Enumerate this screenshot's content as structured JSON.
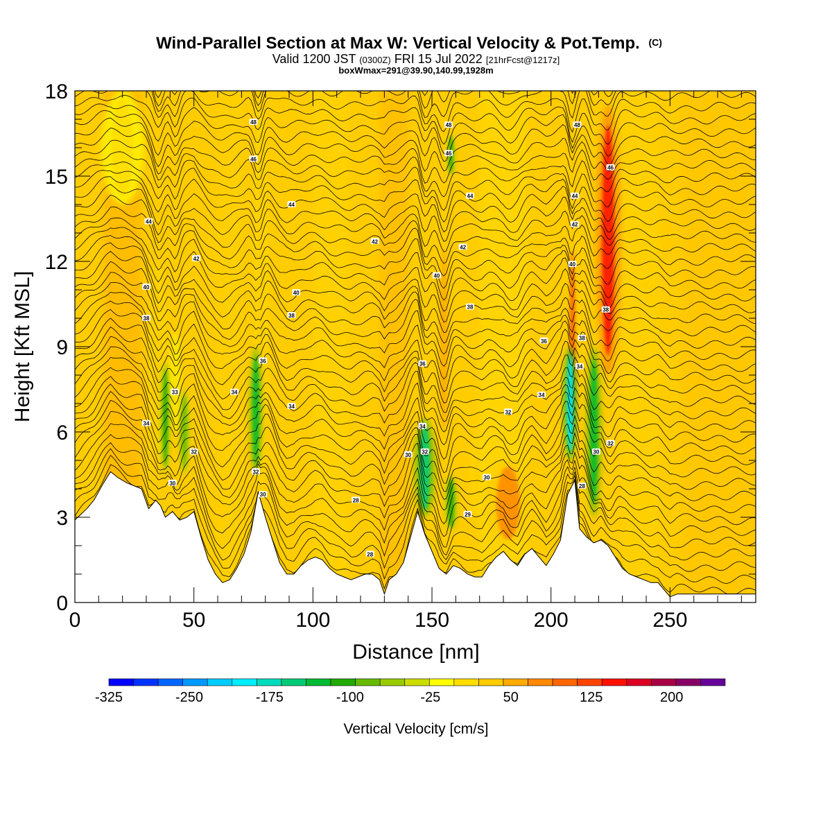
{
  "chart_data": {
    "type": "heatmap",
    "title": "Wind-Parallel Section at Max W: Vertical Velocity & Pot.Temp.",
    "title_units": "(C)",
    "subtitle_valid": "Valid 1200 JST",
    "subtitle_utc": "(0300Z)",
    "subtitle_date": "FRI 15 Jul 2022",
    "subtitle_fcst": "[21hrFcst@1217z]",
    "subtitle_box": "boxWmax=291@39.90,140.99,1928m",
    "xlabel": "Distance [nm]",
    "ylabel": "Height [Kft MSL]",
    "xlim": [
      0,
      286
    ],
    "ylim": [
      0,
      18
    ],
    "x_ticks": [
      0,
      50,
      100,
      150,
      200,
      250
    ],
    "y_ticks": [
      0,
      3,
      6,
      9,
      12,
      15,
      18
    ],
    "terrain": [
      [
        0,
        2.9
      ],
      [
        5,
        3.3
      ],
      [
        8,
        3.6
      ],
      [
        12,
        4.2
      ],
      [
        15,
        4.6
      ],
      [
        18,
        4.4
      ],
      [
        22,
        4.2
      ],
      [
        28,
        4.0
      ],
      [
        31,
        3.3
      ],
      [
        34,
        3.6
      ],
      [
        36,
        3.4
      ],
      [
        38,
        3.0
      ],
      [
        41,
        3.2
      ],
      [
        44,
        2.9
      ],
      [
        47,
        3.0
      ],
      [
        50,
        3.2
      ],
      [
        53,
        2.3
      ],
      [
        56,
        1.5
      ],
      [
        59,
        1.0
      ],
      [
        62,
        0.7
      ],
      [
        65,
        0.8
      ],
      [
        68,
        1.2
      ],
      [
        71,
        1.7
      ],
      [
        74,
        2.5
      ],
      [
        77,
        3.9
      ],
      [
        80,
        3.0
      ],
      [
        83,
        2.2
      ],
      [
        86,
        1.4
      ],
      [
        89,
        1.0
      ],
      [
        92,
        1.0
      ],
      [
        95,
        1.3
      ],
      [
        98,
        1.5
      ],
      [
        101,
        1.6
      ],
      [
        104,
        1.5
      ],
      [
        107,
        1.2
      ],
      [
        110,
        1.0
      ],
      [
        113,
        0.9
      ],
      [
        116,
        0.8
      ],
      [
        119,
        0.9
      ],
      [
        122,
        1.0
      ],
      [
        125,
        1.0
      ],
      [
        128,
        0.8
      ],
      [
        130,
        0.3
      ],
      [
        132,
        0.8
      ],
      [
        135,
        1.0
      ],
      [
        138,
        1.4
      ],
      [
        141,
        2.3
      ],
      [
        144,
        3.2
      ],
      [
        147,
        2.4
      ],
      [
        150,
        1.8
      ],
      [
        153,
        1.2
      ],
      [
        156,
        1.0
      ],
      [
        159,
        1.3
      ],
      [
        162,
        1.2
      ],
      [
        165,
        1.0
      ],
      [
        168,
        0.9
      ],
      [
        171,
        0.9
      ],
      [
        174,
        1.3
      ],
      [
        177,
        1.6
      ],
      [
        180,
        1.8
      ],
      [
        183,
        1.5
      ],
      [
        186,
        1.3
      ],
      [
        189,
        1.7
      ],
      [
        192,
        1.9
      ],
      [
        195,
        1.6
      ],
      [
        198,
        1.3
      ],
      [
        201,
        1.7
      ],
      [
        204,
        2.2
      ],
      [
        207,
        3.8
      ],
      [
        210,
        4.3
      ],
      [
        212,
        2.6
      ],
      [
        215,
        2.3
      ],
      [
        218,
        2.1
      ],
      [
        221,
        2.2
      ],
      [
        224,
        2.0
      ],
      [
        227,
        1.6
      ],
      [
        230,
        1.2
      ],
      [
        233,
        1.0
      ],
      [
        236,
        0.9
      ],
      [
        239,
        0.8
      ],
      [
        242,
        0.7
      ],
      [
        245,
        0.7
      ],
      [
        248,
        0.4
      ],
      [
        250,
        0.2
      ],
      [
        253,
        0.3
      ],
      [
        256,
        0.3
      ],
      [
        260,
        0.3
      ],
      [
        265,
        0.3
      ],
      [
        270,
        0.3
      ],
      [
        275,
        0.3
      ],
      [
        280,
        0.3
      ],
      [
        286,
        0.3
      ]
    ],
    "updrafts": [
      {
        "x": 35,
        "y0": 5,
        "y1": 12,
        "w": 1.5,
        "v": 60
      },
      {
        "x": 42,
        "y0": 6,
        "y1": 9.5,
        "w": 1.2,
        "v": 45
      },
      {
        "x": 78,
        "y0": 4,
        "y1": 17.5,
        "w": 1.4,
        "v": 55
      },
      {
        "x": 155,
        "y0": 5.5,
        "y1": 13,
        "w": 1.8,
        "v": 95
      },
      {
        "x": 169,
        "y0": 3,
        "y1": 6,
        "w": 1.2,
        "v": 60
      },
      {
        "x": 182,
        "y0": 2,
        "y1": 5,
        "w": 5.5,
        "v": 100
      },
      {
        "x": 209,
        "y0": 5,
        "y1": 13,
        "w": 1.5,
        "v": 130
      },
      {
        "x": 224,
        "y0": 8,
        "y1": 17.5,
        "w": 2.8,
        "v": 185
      },
      {
        "x": 20,
        "y0": 14,
        "y1": 18,
        "w": 5,
        "v": 40
      }
    ],
    "downdrafts": [
      {
        "x": 38,
        "y0": 4.5,
        "y1": 8.5,
        "w": 1.2,
        "v": -80
      },
      {
        "x": 46,
        "y0": 4.5,
        "y1": 7.5,
        "w": 1.2,
        "v": -70
      },
      {
        "x": 76,
        "y0": 4.5,
        "y1": 9,
        "w": 1.5,
        "v": -110
      },
      {
        "x": 147,
        "y0": 3,
        "y1": 6.5,
        "w": 2.5,
        "v": -130
      },
      {
        "x": 158,
        "y0": 2.5,
        "y1": 4.5,
        "w": 1.5,
        "v": -90
      },
      {
        "x": 158,
        "y0": 15,
        "y1": 16.5,
        "w": 1,
        "v": -90
      },
      {
        "x": 208,
        "y0": 5,
        "y1": 9,
        "w": 1.5,
        "v": -200
      },
      {
        "x": 218,
        "y0": 3,
        "y1": 9,
        "w": 1.8,
        "v": -110
      }
    ],
    "contour_labels": [
      {
        "x": 30,
        "y": 6.3,
        "t": "34"
      },
      {
        "x": 30,
        "y": 10.0,
        "t": "38"
      },
      {
        "x": 30,
        "y": 11.1,
        "t": "40"
      },
      {
        "x": 31,
        "y": 13.4,
        "t": "44"
      },
      {
        "x": 41,
        "y": 4.2,
        "t": "30"
      },
      {
        "x": 42,
        "y": 7.4,
        "t": "33"
      },
      {
        "x": 50,
        "y": 5.3,
        "t": "32"
      },
      {
        "x": 51,
        "y": 12.1,
        "t": "42"
      },
      {
        "x": 67,
        "y": 7.4,
        "t": "34"
      },
      {
        "x": 76,
        "y": 4.6,
        "t": "32"
      },
      {
        "x": 79,
        "y": 3.8,
        "t": "30"
      },
      {
        "x": 79,
        "y": 8.5,
        "t": "36"
      },
      {
        "x": 75,
        "y": 15.6,
        "t": "46"
      },
      {
        "x": 75,
        "y": 16.9,
        "t": "48"
      },
      {
        "x": 91,
        "y": 6.9,
        "t": "34"
      },
      {
        "x": 91,
        "y": 10.1,
        "t": "38"
      },
      {
        "x": 93,
        "y": 10.9,
        "t": "40"
      },
      {
        "x": 91,
        "y": 14.0,
        "t": "44"
      },
      {
        "x": 118,
        "y": 3.6,
        "t": "28"
      },
      {
        "x": 126,
        "y": 12.7,
        "t": "42"
      },
      {
        "x": 124,
        "y": 1.7,
        "t": "28"
      },
      {
        "x": 140,
        "y": 5.2,
        "t": "30"
      },
      {
        "x": 146,
        "y": 6.2,
        "t": "34"
      },
      {
        "x": 147,
        "y": 5.3,
        "t": "32"
      },
      {
        "x": 146,
        "y": 8.4,
        "t": "36"
      },
      {
        "x": 152,
        "y": 11.5,
        "t": "40"
      },
      {
        "x": 157,
        "y": 15.8,
        "t": "46"
      },
      {
        "x": 157,
        "y": 16.8,
        "t": "48"
      },
      {
        "x": 163,
        "y": 12.5,
        "t": "42"
      },
      {
        "x": 165,
        "y": 3.1,
        "t": "29"
      },
      {
        "x": 166,
        "y": 10.4,
        "t": "38"
      },
      {
        "x": 166,
        "y": 14.3,
        "t": "44"
      },
      {
        "x": 173,
        "y": 4.4,
        "t": "30"
      },
      {
        "x": 182,
        "y": 6.7,
        "t": "32"
      },
      {
        "x": 196,
        "y": 7.3,
        "t": "34"
      },
      {
        "x": 197,
        "y": 9.2,
        "t": "36"
      },
      {
        "x": 213,
        "y": 4.1,
        "t": "28"
      },
      {
        "x": 219,
        "y": 5.3,
        "t": "30"
      },
      {
        "x": 225,
        "y": 5.6,
        "t": "32"
      },
      {
        "x": 212,
        "y": 8.3,
        "t": "34"
      },
      {
        "x": 213,
        "y": 9.3,
        "t": "38"
      },
      {
        "x": 209,
        "y": 11.9,
        "t": "40"
      },
      {
        "x": 210,
        "y": 13.3,
        "t": "42"
      },
      {
        "x": 210,
        "y": 14.3,
        "t": "44"
      },
      {
        "x": 211,
        "y": 16.8,
        "t": "48"
      },
      {
        "x": 223,
        "y": 10.3,
        "t": "38"
      },
      {
        "x": 225,
        "y": 15.3,
        "t": "46"
      }
    ],
    "colorbar": {
      "label": "Vertical Velocity [cm/s]",
      "tick_labels": [
        "-325",
        "-250",
        "-175",
        "-100",
        "-25",
        "50",
        "125",
        "200"
      ],
      "min": -325,
      "max": 250,
      "step": 25,
      "colors": [
        "#0000ff",
        "#0033ff",
        "#0066ff",
        "#0099ff",
        "#00ccff",
        "#00eeff",
        "#00ddbb",
        "#00cc77",
        "#00bb33",
        "#22aa00",
        "#66bb00",
        "#99cc00",
        "#ccdd00",
        "#ffff00",
        "#ffdd00",
        "#ffcc00",
        "#ffaa00",
        "#ff8800",
        "#ff6600",
        "#ff4400",
        "#ff1100",
        "#dd0022",
        "#aa0044",
        "#880066",
        "#660099"
      ]
    }
  }
}
